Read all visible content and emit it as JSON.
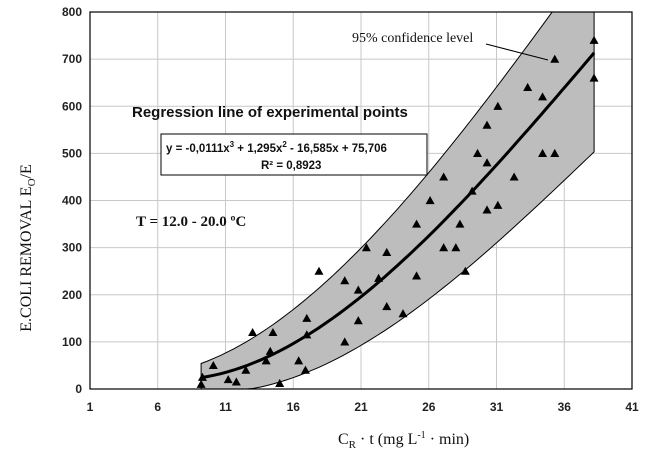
{
  "chart_data": {
    "type": "scatter",
    "title": "",
    "xlabel": "Cʀ · t   (mg L⁻¹ · min)",
    "xlabel_parts": {
      "main": "C",
      "sub": "R",
      "rest": " · t   (mg L",
      "sup": "-1",
      "tail": " · min)"
    },
    "ylabel_parts": {
      "main": "E.COLI REMOVAL  E",
      "sub": "O",
      "tail": "/E"
    },
    "xlim": [
      1,
      41
    ],
    "ylim": [
      0,
      800
    ],
    "x_ticks": [
      1,
      6,
      11,
      16,
      21,
      26,
      31,
      36,
      41
    ],
    "y_ticks": [
      0,
      100,
      200,
      300,
      400,
      500,
      600,
      700,
      800
    ],
    "grid": true,
    "points": [
      {
        "x": 9.2,
        "y": 10
      },
      {
        "x": 9.3,
        "y": 25
      },
      {
        "x": 10.1,
        "y": 50
      },
      {
        "x": 11.2,
        "y": 20
      },
      {
        "x": 11.8,
        "y": 15
      },
      {
        "x": 12.5,
        "y": 40
      },
      {
        "x": 13.0,
        "y": 120
      },
      {
        "x": 14.0,
        "y": 60
      },
      {
        "x": 14.3,
        "y": 80
      },
      {
        "x": 14.5,
        "y": 120
      },
      {
        "x": 15.0,
        "y": 12
      },
      {
        "x": 16.4,
        "y": 60
      },
      {
        "x": 16.9,
        "y": 40
      },
      {
        "x": 17.0,
        "y": 115
      },
      {
        "x": 17.0,
        "y": 150
      },
      {
        "x": 17.9,
        "y": 250
      },
      {
        "x": 19.8,
        "y": 100
      },
      {
        "x": 19.8,
        "y": 230
      },
      {
        "x": 20.8,
        "y": 145
      },
      {
        "x": 20.8,
        "y": 210
      },
      {
        "x": 21.4,
        "y": 300
      },
      {
        "x": 22.3,
        "y": 235
      },
      {
        "x": 22.9,
        "y": 175
      },
      {
        "x": 22.9,
        "y": 290
      },
      {
        "x": 24.1,
        "y": 160
      },
      {
        "x": 25.1,
        "y": 240
      },
      {
        "x": 25.1,
        "y": 350
      },
      {
        "x": 26.1,
        "y": 400
      },
      {
        "x": 27.1,
        "y": 300
      },
      {
        "x": 27.1,
        "y": 450
      },
      {
        "x": 28.0,
        "y": 300
      },
      {
        "x": 28.3,
        "y": 350
      },
      {
        "x": 28.7,
        "y": 250
      },
      {
        "x": 29.2,
        "y": 420
      },
      {
        "x": 29.6,
        "y": 500
      },
      {
        "x": 30.3,
        "y": 380
      },
      {
        "x": 30.3,
        "y": 480
      },
      {
        "x": 30.3,
        "y": 560
      },
      {
        "x": 31.1,
        "y": 390
      },
      {
        "x": 31.1,
        "y": 600
      },
      {
        "x": 32.3,
        "y": 450
      },
      {
        "x": 33.3,
        "y": 640
      },
      {
        "x": 34.4,
        "y": 500
      },
      {
        "x": 34.4,
        "y": 620
      },
      {
        "x": 35.3,
        "y": 500
      },
      {
        "x": 35.3,
        "y": 700
      },
      {
        "x": 38.2,
        "y": 660
      },
      {
        "x": 38.2,
        "y": 740
      }
    ],
    "regression": {
      "label": "Regression line of   experimental points",
      "equation_parts": [
        "y = -0,0111x",
        "3",
        " + 1,295x",
        "2",
        " - 16,585x + 75,706"
      ],
      "r2": "R² = 0,8923",
      "coefficients": [
        -0.0111,
        1.295,
        -16.585,
        75.706
      ],
      "x_range": [
        9.2,
        38.2
      ]
    },
    "confidence_band": {
      "label": "95% confidence level",
      "half_width_low": 30,
      "half_width_high": 210
    },
    "condition": "T = 12.0 - 20.0 ºC",
    "colors": {
      "band": "#bdbdbd",
      "line": "#000000",
      "marker": "#000000",
      "grid": "#c8c8c8"
    }
  }
}
